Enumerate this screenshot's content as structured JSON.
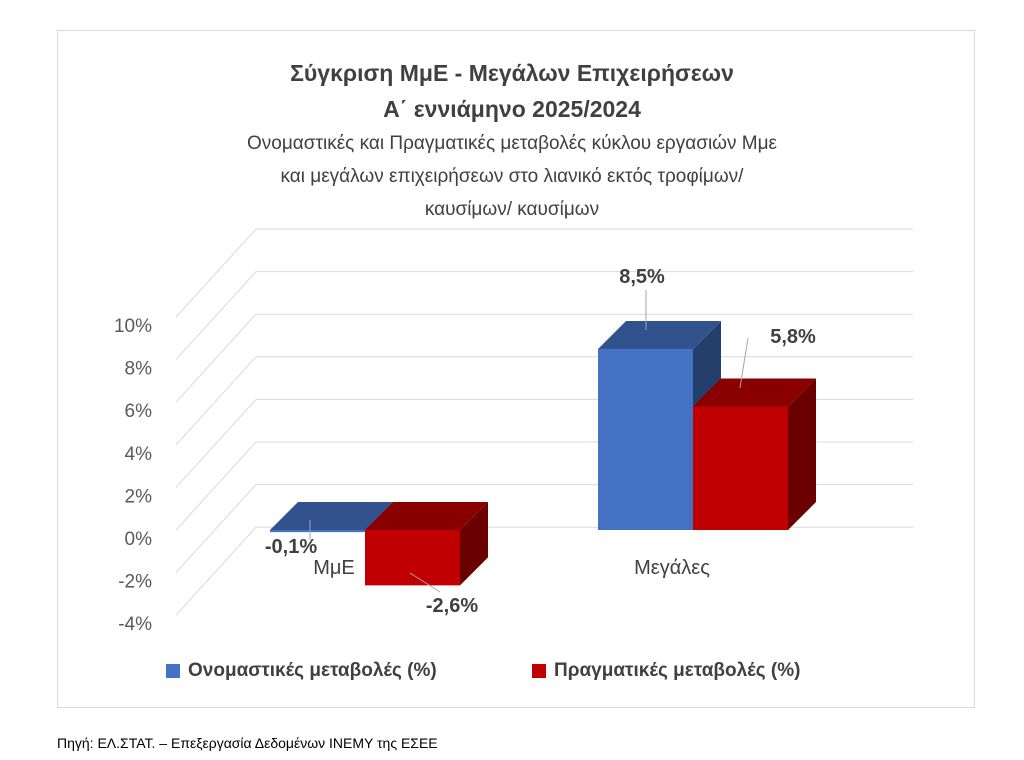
{
  "chart_data": {
    "type": "bar",
    "title": "Σύγκριση ΜμΕ - Μεγάλων Επιχειρήσεων",
    "title_line2": "Α΄ εννιάμηνο 2025/2024",
    "subtitle_lines": [
      "Ονομαστικές και Πραγματικές μεταβολές κύκλου εργασιών Μμε",
      "και μεγάλων επιχειρήσεων στο λιανικό εκτός τροφίμων/",
      "καυσίμων/ καυσίμων"
    ],
    "categories": [
      "ΜμΕ",
      "Μεγάλες"
    ],
    "series": [
      {
        "name": "Ονομαστικές μεταβολές (%)",
        "values": [
          -0.1,
          8.5
        ],
        "labels": [
          "-0,1%",
          "8,5%"
        ],
        "color": "#4472c4"
      },
      {
        "name": "Πραγματικές μεταβολές (%)",
        "values": [
          -2.6,
          5.8
        ],
        "labels": [
          "-2,6%",
          "5,8%"
        ],
        "color": "#c00000"
      }
    ],
    "y_ticks": [
      "10%",
      "8%",
      "6%",
      "4%",
      "2%",
      "0%",
      "-2%",
      "-4%"
    ],
    "y_tick_values": [
      10,
      8,
      6,
      4,
      2,
      0,
      -2,
      -4
    ],
    "ylim": [
      -4,
      10
    ],
    "grid": true,
    "style": "3d-column",
    "legend_position": "bottom"
  },
  "source": "Πηγή: ΕΛ.ΣΤΑΤ. – Επεξεργασία Δεδομένων ΙΝΕΜΥ της ΕΣΕΕ"
}
